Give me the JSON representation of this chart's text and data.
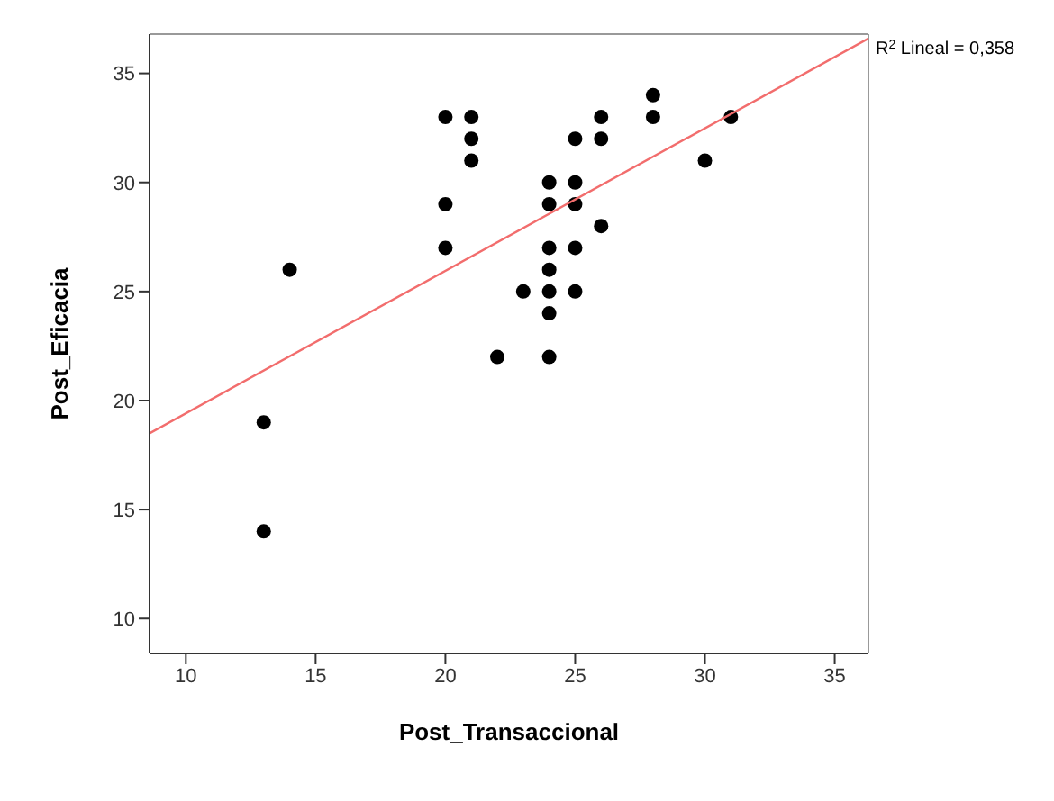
{
  "chart_data": {
    "type": "scatter",
    "xlabel": "Post_Transaccional",
    "ylabel": "Post_Eficacia",
    "xlim": [
      8.6,
      36.3
    ],
    "ylim": [
      8.4,
      36.8
    ],
    "xticks": [
      10,
      15,
      20,
      25,
      30,
      35
    ],
    "yticks": [
      10,
      15,
      20,
      25,
      30,
      35
    ],
    "annotations": [
      "R$^{2}$ Lineal = 0,358"
    ],
    "series": [
      {
        "color": "#000000",
        "marker": "circle",
        "x": [
          13,
          13,
          14,
          20,
          20,
          20,
          21,
          21,
          21,
          22,
          23,
          24,
          24,
          24,
          24,
          24,
          24,
          24,
          25,
          25,
          25,
          25,
          25,
          26,
          26,
          26,
          28,
          28,
          30,
          31
        ],
        "values": [
          19,
          14,
          26,
          33,
          29,
          27,
          33,
          32,
          31,
          22,
          25,
          30,
          29,
          27,
          26,
          25,
          24,
          22,
          32,
          30,
          29,
          27,
          25,
          33,
          32,
          28,
          34,
          33,
          31,
          33
        ]
      },
      {
        "type": "line",
        "color": "#f26d6d",
        "marker": "none",
        "x": [
          8.6,
          36.3
        ],
        "values": [
          18.5,
          36.6
        ]
      }
    ]
  }
}
